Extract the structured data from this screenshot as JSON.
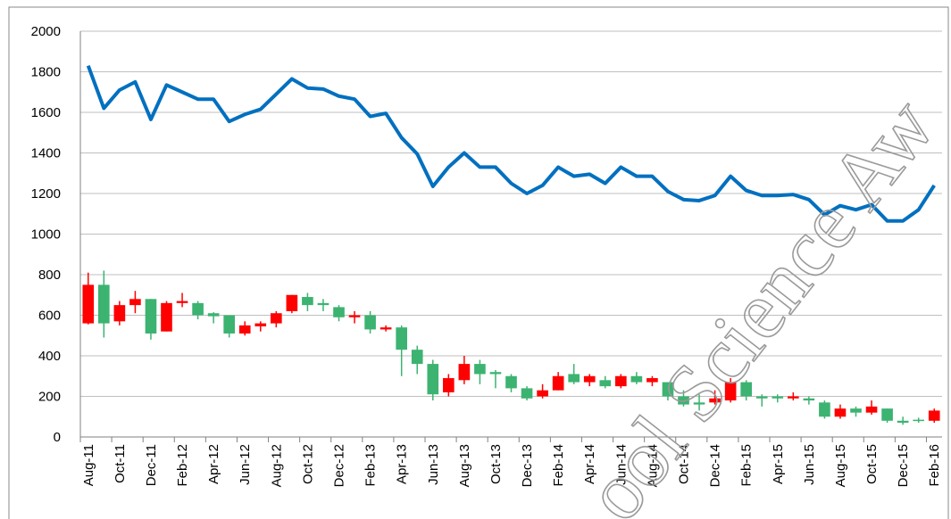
{
  "chart_data": {
    "type": "candlestick",
    "categories": [
      "Aug-11",
      null,
      "Oct-11",
      null,
      "Dec-11",
      null,
      "Feb-12",
      null,
      "Apr-12",
      null,
      "Jun-12",
      null,
      "Aug-12",
      null,
      "Oct-12",
      null,
      "Dec-12",
      null,
      "Feb-13",
      null,
      "Apr-13",
      null,
      "Jun-13",
      null,
      "Aug-13",
      null,
      "Oct-13",
      null,
      "Dec-13",
      null,
      "Feb-14",
      null,
      "Apr-14",
      null,
      "Jun-14",
      null,
      "Aug-14",
      null,
      "Oct-14",
      null,
      "Dec-14",
      null,
      "Feb-15",
      null,
      "Apr-15",
      null,
      "Jun-15",
      null,
      "Aug-15",
      null,
      "Oct-15",
      null,
      "Dec-15",
      null,
      "Feb-16"
    ],
    "open": [
      560,
      750,
      570,
      650,
      680,
      520,
      660,
      660,
      610,
      600,
      510,
      545,
      560,
      620,
      690,
      660,
      640,
      590,
      600,
      530,
      540,
      430,
      360,
      220,
      280,
      360,
      320,
      300,
      240,
      200,
      230,
      310,
      270,
      280,
      250,
      300,
      270,
      270,
      200,
      170,
      170,
      180,
      270,
      200,
      200,
      190,
      190,
      170,
      100,
      140,
      120,
      140,
      80,
      85,
      80
    ],
    "high": [
      810,
      820,
      670,
      720,
      680,
      670,
      710,
      670,
      615,
      600,
      570,
      570,
      620,
      700,
      710,
      680,
      650,
      620,
      620,
      550,
      550,
      450,
      380,
      310,
      400,
      380,
      330,
      310,
      250,
      260,
      320,
      360,
      310,
      300,
      310,
      320,
      300,
      270,
      230,
      210,
      230,
      290,
      280,
      210,
      210,
      220,
      200,
      180,
      160,
      150,
      180,
      140,
      100,
      95,
      140
    ],
    "low": [
      555,
      490,
      550,
      610,
      480,
      520,
      640,
      580,
      560,
      490,
      500,
      520,
      540,
      610,
      620,
      620,
      570,
      560,
      510,
      520,
      300,
      310,
      180,
      200,
      260,
      260,
      240,
      220,
      180,
      190,
      230,
      260,
      250,
      240,
      240,
      260,
      250,
      180,
      150,
      130,
      160,
      170,
      180,
      150,
      170,
      180,
      160,
      90,
      90,
      100,
      110,
      70,
      60,
      70,
      70
    ],
    "close": [
      750,
      560,
      650,
      680,
      510,
      660,
      670,
      600,
      595,
      510,
      550,
      560,
      610,
      700,
      650,
      650,
      590,
      600,
      530,
      540,
      430,
      360,
      210,
      290,
      360,
      310,
      310,
      240,
      190,
      230,
      300,
      270,
      300,
      250,
      300,
      270,
      290,
      200,
      160,
      160,
      190,
      270,
      200,
      190,
      190,
      200,
      180,
      100,
      140,
      120,
      150,
      80,
      70,
      80,
      130
    ],
    "up_color": "#ff0000",
    "down_color": "#3cb371",
    "line": {
      "color": "#0070c0",
      "values": [
        1830,
        1620,
        1710,
        1750,
        1565,
        1735,
        1700,
        1665,
        1665,
        1555,
        1590,
        1615,
        1690,
        1765,
        1720,
        1715,
        1680,
        1665,
        1580,
        1595,
        1475,
        1395,
        1235,
        1330,
        1400,
        1330,
        1330,
        1250,
        1200,
        1240,
        1330,
        1285,
        1295,
        1250,
        1330,
        1285,
        1285,
        1210,
        1170,
        1165,
        1190,
        1285,
        1215,
        1190,
        1190,
        1195,
        1170,
        1095,
        1140,
        1120,
        1145,
        1065,
        1065,
        1120,
        1240
      ]
    },
    "ylim": [
      0,
      2000
    ],
    "yticks": [
      0,
      200,
      400,
      600,
      800,
      1000,
      1200,
      1400,
      1600,
      1800,
      2000
    ],
    "grid": true,
    "watermark": "ool Science Aw"
  }
}
